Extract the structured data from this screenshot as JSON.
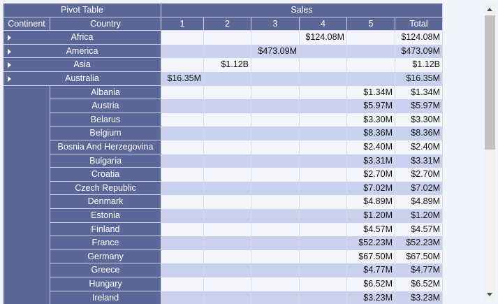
{
  "header": {
    "corner": "Pivot Table",
    "measure": "Sales",
    "row_fields": [
      "Continent",
      "Country"
    ],
    "columns": [
      "1",
      "2",
      "3",
      "4",
      "5",
      "Total"
    ]
  },
  "rows": [
    {
      "continent": "Africa",
      "cells": [
        null,
        null,
        null,
        "$124.08M",
        null,
        "$124.08M"
      ]
    },
    {
      "continent": "America",
      "cells": [
        null,
        null,
        "$473.09M",
        null,
        null,
        "$473.09M"
      ]
    },
    {
      "continent": "Asia",
      "cells": [
        null,
        "$1.12B",
        null,
        null,
        null,
        "$1.12B"
      ]
    },
    {
      "continent": "Australia",
      "cells": [
        "$16.35M",
        null,
        null,
        null,
        null,
        "$16.35M"
      ]
    },
    {
      "country": "Albania",
      "cells": [
        null,
        null,
        null,
        null,
        "$1.34M",
        "$1.34M"
      ]
    },
    {
      "country": "Austria",
      "cells": [
        null,
        null,
        null,
        null,
        "$5.97M",
        "$5.97M"
      ]
    },
    {
      "country": "Belarus",
      "cells": [
        null,
        null,
        null,
        null,
        "$3.30M",
        "$3.30M"
      ]
    },
    {
      "country": "Belgium",
      "cells": [
        null,
        null,
        null,
        null,
        "$8.36M",
        "$8.36M"
      ]
    },
    {
      "country": "Bosnia And Herzegovina",
      "cells": [
        null,
        null,
        null,
        null,
        "$2.40M",
        "$2.40M"
      ]
    },
    {
      "country": "Bulgaria",
      "cells": [
        null,
        null,
        null,
        null,
        "$3.31M",
        "$3.31M"
      ]
    },
    {
      "country": "Croatia",
      "cells": [
        null,
        null,
        null,
        null,
        "$2.70M",
        "$2.70M"
      ]
    },
    {
      "country": "Czech Republic",
      "cells": [
        null,
        null,
        null,
        null,
        "$7.02M",
        "$7.02M"
      ]
    },
    {
      "country": "Denmark",
      "cells": [
        null,
        null,
        null,
        null,
        "$4.89M",
        "$4.89M"
      ]
    },
    {
      "country": "Estonia",
      "cells": [
        null,
        null,
        null,
        null,
        "$1.20M",
        "$1.20M"
      ]
    },
    {
      "country": "Finland",
      "cells": [
        null,
        null,
        null,
        null,
        "$4.57M",
        "$4.57M"
      ]
    },
    {
      "country": "France",
      "cells": [
        null,
        null,
        null,
        null,
        "$52.23M",
        "$52.23M"
      ]
    },
    {
      "country": "Germany",
      "cells": [
        null,
        null,
        null,
        null,
        "$67.50M",
        "$67.50M"
      ]
    },
    {
      "country": "Greece",
      "cells": [
        null,
        null,
        null,
        null,
        "$4.77M",
        "$4.77M"
      ]
    },
    {
      "country": "Hungary",
      "cells": [
        null,
        null,
        null,
        null,
        "$6.52M",
        "$6.52M"
      ]
    },
    {
      "country": "Ireland",
      "cells": [
        null,
        null,
        null,
        null,
        "$3.23M",
        "$3.23M"
      ]
    }
  ]
}
